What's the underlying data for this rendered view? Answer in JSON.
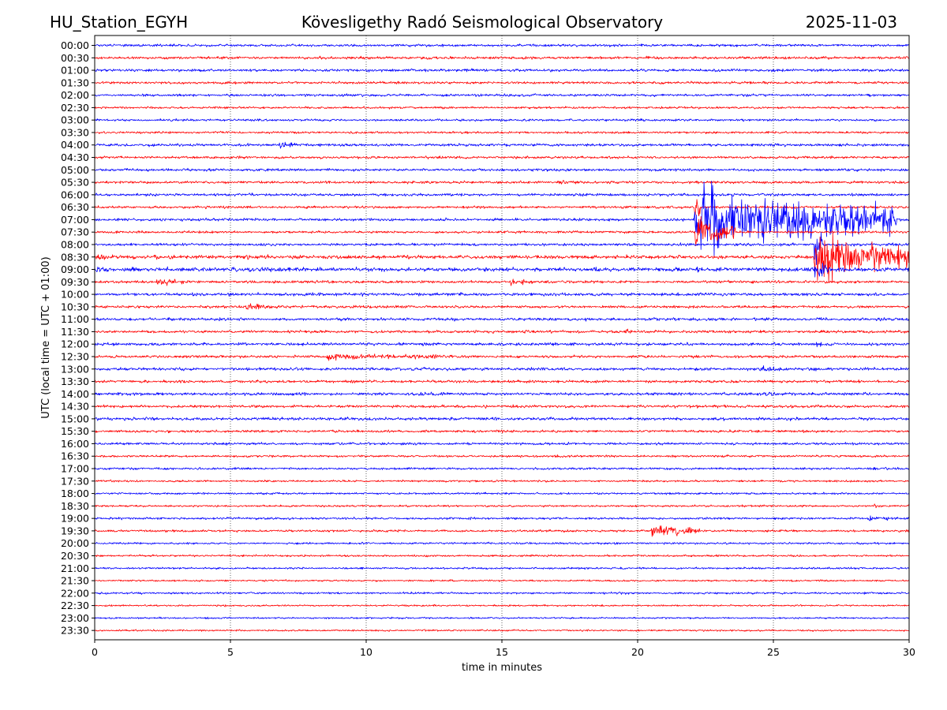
{
  "chart_data": {
    "type": "line",
    "subtype": "helicorder",
    "station": "HU_Station_EGYH",
    "title": "Kövesligethy Radó Seismological Observatory",
    "date": "2025-11-03",
    "xlabel": "time in minutes",
    "ylabel": "UTC (local time = UTC + 01:00)",
    "xlim": [
      0,
      30
    ],
    "xticks": [
      0,
      5,
      10,
      15,
      20,
      25,
      30
    ],
    "grid_x": [
      5,
      10,
      15,
      20,
      25
    ],
    "trace_colors": [
      "#0000ff",
      "#ff0000"
    ],
    "rows": [
      "00:00",
      "00:30",
      "01:00",
      "01:30",
      "02:00",
      "02:30",
      "03:00",
      "03:30",
      "04:00",
      "04:30",
      "05:00",
      "05:30",
      "06:00",
      "06:30",
      "07:00",
      "07:30",
      "08:00",
      "08:30",
      "09:00",
      "09:30",
      "10:00",
      "10:30",
      "11:00",
      "11:30",
      "12:00",
      "12:30",
      "13:00",
      "13:30",
      "14:00",
      "14:30",
      "15:00",
      "15:30",
      "16:00",
      "16:30",
      "17:00",
      "17:30",
      "18:00",
      "18:30",
      "19:00",
      "19:30",
      "20:00",
      "20:30",
      "21:00",
      "21:30",
      "22:00",
      "22:30",
      "23:00",
      "23:30"
    ],
    "noise_level": [
      1.0,
      1.1,
      1.1,
      1.0,
      1.0,
      0.9,
      0.9,
      0.9,
      1.1,
      1.0,
      1.1,
      1.0,
      1.1,
      1.0,
      1.1,
      1.0,
      1.1,
      1.5,
      1.6,
      1.1,
      1.2,
      1.1,
      1.2,
      1.1,
      1.2,
      1.1,
      1.2,
      1.1,
      1.2,
      1.1,
      1.2,
      1.0,
      1.0,
      0.9,
      0.9,
      0.8,
      0.8,
      0.8,
      0.9,
      0.9,
      0.8,
      0.8,
      0.8,
      0.7,
      0.8,
      0.7,
      0.7,
      0.7
    ],
    "events": [
      {
        "row": "04:00",
        "start_min": 6.8,
        "duration_min": 0.6,
        "amplitude": 4
      },
      {
        "row": "05:30",
        "start_min": 17.0,
        "duration_min": 2.0,
        "amplitude": 2
      },
      {
        "row": "06:30",
        "start_min": 22.1,
        "duration_min": 0.2,
        "amplitude": 20
      },
      {
        "row": "07:00",
        "start_min": 22.1,
        "duration_min": 7.5,
        "amplitude": 28
      },
      {
        "row": "07:30",
        "start_min": 22.1,
        "duration_min": 1.5,
        "amplitude": 14
      },
      {
        "row": "08:00",
        "start_min": 26.5,
        "duration_min": 0.3,
        "amplitude": 18
      },
      {
        "row": "08:30",
        "start_min": 26.5,
        "duration_min": 3.5,
        "amplitude": 24
      },
      {
        "row": "08:30",
        "start_min": 0.0,
        "duration_min": 1.5,
        "amplitude": 3
      },
      {
        "row": "09:00",
        "start_min": 0.0,
        "duration_min": 1.0,
        "amplitude": 3
      },
      {
        "row": "09:00",
        "start_min": 26.5,
        "duration_min": 0.5,
        "amplitude": 12
      },
      {
        "row": "09:30",
        "start_min": 2.2,
        "duration_min": 1.5,
        "amplitude": 3.5
      },
      {
        "row": "09:30",
        "start_min": 15.3,
        "duration_min": 1.0,
        "amplitude": 3
      },
      {
        "row": "10:30",
        "start_min": 5.5,
        "duration_min": 1.5,
        "amplitude": 3.5
      },
      {
        "row": "11:30",
        "start_min": 15.8,
        "duration_min": 0.6,
        "amplitude": 3
      },
      {
        "row": "11:30",
        "start_min": 19.5,
        "duration_min": 0.8,
        "amplitude": 2.5
      },
      {
        "row": "12:00",
        "start_min": 26.5,
        "duration_min": 0.8,
        "amplitude": 3
      },
      {
        "row": "12:30",
        "start_min": 8.5,
        "duration_min": 4.8,
        "amplitude": 3.5
      },
      {
        "row": "13:00",
        "start_min": 24.5,
        "duration_min": 0.8,
        "amplitude": 4
      },
      {
        "row": "14:00",
        "start_min": 24.7,
        "duration_min": 0.4,
        "amplitude": 4
      },
      {
        "row": "15:30",
        "start_min": 14.8,
        "duration_min": 0.8,
        "amplitude": 2
      },
      {
        "row": "18:30",
        "start_min": 28.7,
        "duration_min": 0.1,
        "amplitude": 4
      },
      {
        "row": "19:00",
        "start_min": 28.5,
        "duration_min": 1.0,
        "amplitude": 3
      },
      {
        "row": "19:30",
        "start_min": 20.5,
        "duration_min": 1.8,
        "amplitude": 6
      }
    ]
  }
}
